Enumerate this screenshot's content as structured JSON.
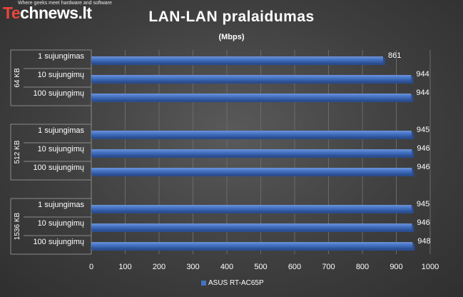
{
  "brand": {
    "logo_text_te": "Te",
    "logo_text_rest": "chnews.lt",
    "tagline": "Where geeks meet hardware and software"
  },
  "colors": {
    "bar": "#4472c4",
    "bar_dark": "#2a4d8f",
    "bar_light": "#6d93d8",
    "grid": "#6a6a6a",
    "text": "#ffffff",
    "logo_accent": "#e8463c"
  },
  "chart_data": {
    "type": "bar",
    "orientation": "horizontal",
    "title": "LAN-LAN  pralaidumas",
    "subtitle": "(Mbps)",
    "groups": [
      {
        "name": "64 KB",
        "categories": [
          "1 sujungimas",
          "10  sujungimų",
          "100 sujungimų"
        ],
        "values": [
          861,
          944,
          944
        ]
      },
      {
        "name": "512 KB",
        "categories": [
          "1 sujungimas",
          "10  sujungimų",
          "100 sujungimų"
        ],
        "values": [
          945,
          946,
          946
        ]
      },
      {
        "name": "1536 KB",
        "categories": [
          "1 sujungimas",
          "10  sujungimų",
          "100 sujungimų"
        ],
        "values": [
          945,
          946,
          948
        ]
      }
    ],
    "series": [
      {
        "name": "ASUS RT-AC65P"
      }
    ],
    "xlim": [
      0,
      1000
    ],
    "xticks": [
      0,
      100,
      200,
      300,
      400,
      500,
      600,
      700,
      800,
      900,
      1000
    ],
    "grid": true,
    "legend": "bottom"
  }
}
